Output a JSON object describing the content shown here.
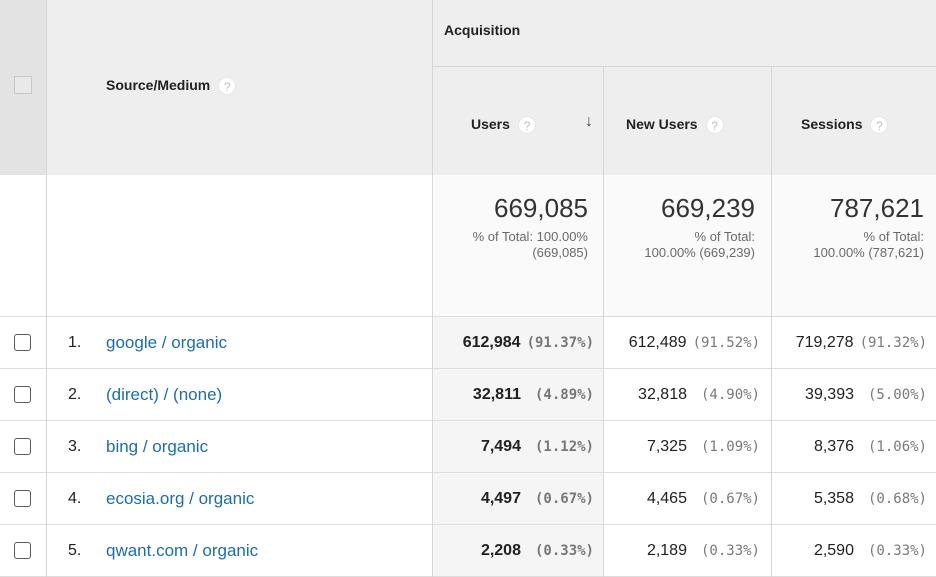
{
  "header": {
    "source_medium_label": "Source/Medium",
    "group_label": "Acquisition",
    "columns": [
      {
        "label": "Users",
        "sorted": "desc"
      },
      {
        "label": "New Users"
      },
      {
        "label": "Sessions"
      }
    ],
    "help_glyph": "?",
    "sort_glyph": "↓"
  },
  "totals": [
    {
      "value": "669,085",
      "line1": "% of Total: 100.00%",
      "line2": "(669,085)"
    },
    {
      "value": "669,239",
      "line1": "% of Total:",
      "line2": "100.00% (669,239)"
    },
    {
      "value": "787,621",
      "line1": "% of Total:",
      "line2": "100.00% (787,621)"
    }
  ],
  "rows": [
    {
      "num": "1.",
      "source": "google / organic",
      "users": "612,984",
      "users_pct": "(91.37%)",
      "new_users": "612,489",
      "new_users_pct": "(91.52%)",
      "sessions": "719,278",
      "sessions_pct": "(91.32%)"
    },
    {
      "num": "2.",
      "source": "(direct) / (none)",
      "users": "32,811",
      "users_pct": "(4.89%)",
      "new_users": "32,818",
      "new_users_pct": "(4.90%)",
      "sessions": "39,393",
      "sessions_pct": "(5.00%)"
    },
    {
      "num": "3.",
      "source": "bing / organic",
      "users": "7,494",
      "users_pct": "(1.12%)",
      "new_users": "7,325",
      "new_users_pct": "(1.09%)",
      "sessions": "8,376",
      "sessions_pct": "(1.06%)"
    },
    {
      "num": "4.",
      "source": "ecosia.org / organic",
      "users": "4,497",
      "users_pct": "(0.67%)",
      "new_users": "4,465",
      "new_users_pct": "(0.67%)",
      "sessions": "5,358",
      "sessions_pct": "(0.68%)"
    },
    {
      "num": "5.",
      "source": "qwant.com / organic",
      "users": "2,208",
      "users_pct": "(0.33%)",
      "new_users": "2,189",
      "new_users_pct": "(0.33%)",
      "sessions": "2,590",
      "sessions_pct": "(0.33%)"
    }
  ],
  "colors": {
    "link": "#1a6eb5",
    "header_bg": "#eeeeee",
    "grid": "#dddddd"
  }
}
